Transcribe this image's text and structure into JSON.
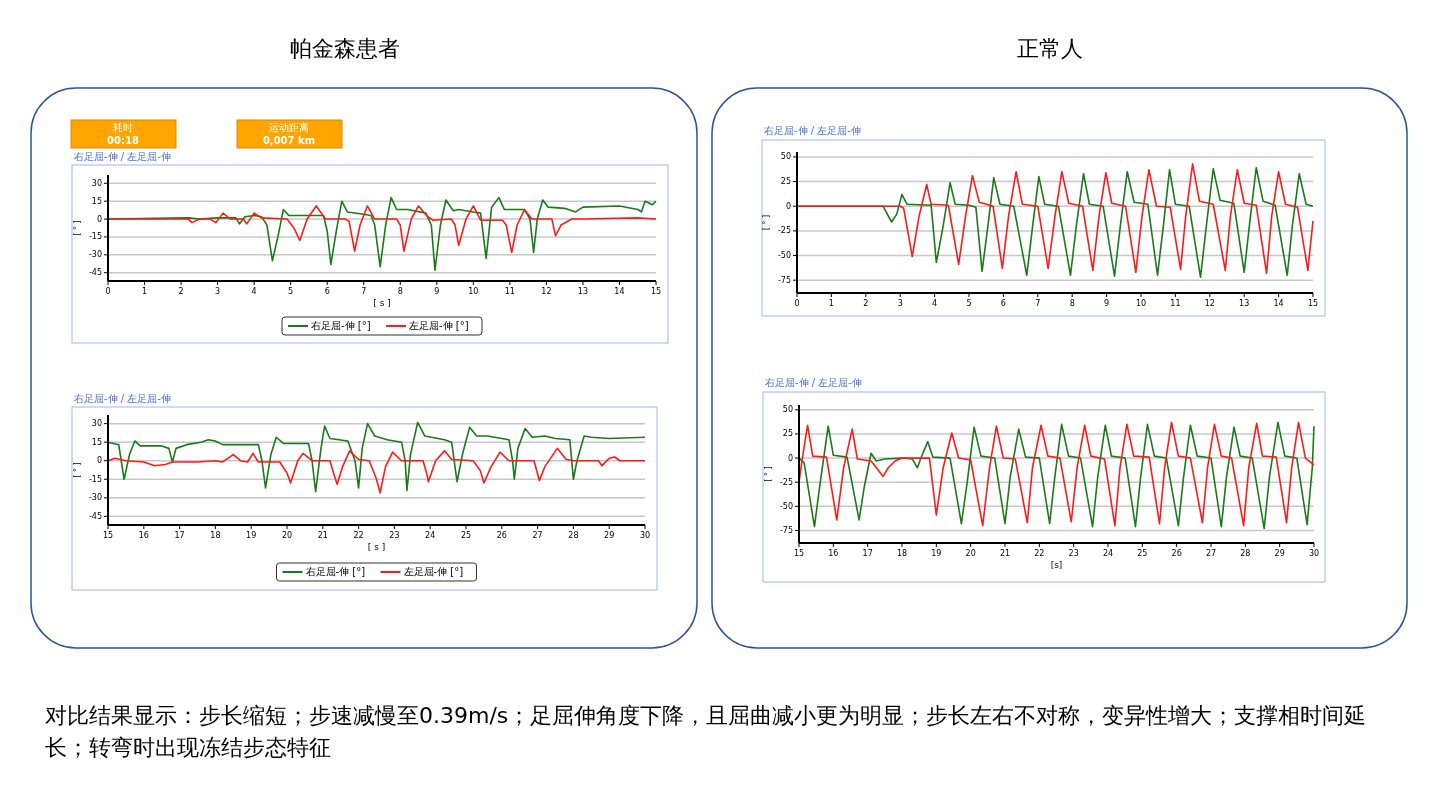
{
  "chart_data": [
    {
      "type": "line",
      "title": "右足屈-伸 / 左足屈-伸",
      "xlabel": "[ s ]",
      "ylabel": "[ ° ]",
      "xlim": [
        0,
        15
      ],
      "xticks": [
        0,
        1,
        2,
        3,
        4,
        5,
        6,
        7,
        8,
        9,
        10,
        11,
        12,
        13,
        14,
        15
      ],
      "ylim": [
        -52,
        37
      ],
      "yticks": [
        30,
        15,
        0,
        -15,
        -30,
        -45
      ],
      "grid": "y",
      "legend": "bottom",
      "annotations": [
        "帕金森患者",
        "耗时",
        "00:18",
        "运动距离",
        "0,007 km",
        "对比结果显示：步长缩短；步速减慢至0.39m/s；足屈伸角度下降，且屈曲减小更为明显；步长左右不对称，变异性增大；支撑相时间延长；转弯时出现冻结步态特征"
      ],
      "series": [
        {
          "name": "右足屈-伸 [°]",
          "color": "#1a7a1a",
          "x": [
            0,
            2.2,
            2.5,
            3,
            3.5,
            3.6,
            3.75,
            4,
            4.2,
            4.35,
            4.5,
            4.65,
            4.8,
            4.95,
            5.5,
            5.9,
            6,
            6.1,
            6.25,
            6.4,
            6.55,
            7,
            7.2,
            7.3,
            7.45,
            7.6,
            7.75,
            7.9,
            8.2,
            8.7,
            8.85,
            8.95,
            9.1,
            9.25,
            9.45,
            9.6,
            10,
            10.2,
            10.35,
            10.5,
            10.7,
            10.85,
            11.4,
            11.55,
            11.65,
            11.75,
            11.9,
            12.05,
            12.5,
            12.8,
            13,
            14,
            14.5,
            14.6,
            14.7,
            14.9,
            15
          ],
          "values": [
            0,
            1,
            0,
            1,
            1,
            -4,
            2,
            3,
            2,
            -5,
            -35,
            -15,
            8,
            3,
            3,
            3,
            -10,
            -38,
            -10,
            15,
            6,
            4,
            3,
            -5,
            -40,
            -5,
            18,
            8,
            8,
            5,
            -5,
            -43,
            -5,
            16,
            7,
            8,
            6,
            5,
            -33,
            10,
            18,
            8,
            8,
            0,
            -28,
            0,
            16,
            10,
            9,
            6,
            10,
            11,
            8,
            6,
            15,
            12,
            15
          ]
        },
        {
          "name": "左足屈-伸 [°]",
          "color": "#ff1a1a",
          "x": [
            0,
            2.2,
            2.3,
            2.5,
            2.8,
            2.95,
            3.15,
            3.35,
            3.7,
            3.8,
            4,
            4.2,
            4.9,
            5.1,
            5.25,
            5.45,
            5.7,
            5.95,
            6.5,
            6.6,
            6.75,
            6.9,
            7.1,
            7.3,
            7.9,
            8,
            8.1,
            8.3,
            8.5,
            8.75,
            8.9,
            9.4,
            9.5,
            9.6,
            9.8,
            10,
            10.2,
            10.8,
            10.9,
            11.05,
            11.2,
            11.4,
            11.6,
            12.15,
            12.25,
            12.4,
            12.7,
            13,
            14.5,
            15
          ],
          "values": [
            0,
            0,
            -3,
            0,
            0,
            -3,
            5,
            0,
            0,
            -4,
            5,
            1,
            0,
            -8,
            -18,
            0,
            11,
            0,
            0,
            -2,
            -27,
            -5,
            11,
            0,
            0,
            -5,
            -27,
            0,
            11,
            2,
            -1,
            0,
            -5,
            -22,
            0,
            11,
            -1,
            -1,
            -5,
            -28,
            -5,
            8,
            0,
            0,
            -14,
            -5,
            0,
            0,
            1,
            0
          ]
        }
      ]
    },
    {
      "type": "line",
      "title": "右足屈-伸 / 左足屈-伸",
      "xlabel": "[ s ]",
      "ylabel": "[ ° ]",
      "xlim": [
        15,
        30
      ],
      "xticks": [
        15,
        16,
        17,
        18,
        19,
        20,
        21,
        22,
        23,
        24,
        25,
        26,
        27,
        28,
        29,
        30
      ],
      "ylim": [
        -52,
        37
      ],
      "yticks": [
        30,
        15,
        0,
        -15,
        -30,
        -45
      ],
      "grid": "y",
      "legend": "bottom",
      "series": [
        {
          "name": "右足屈-伸 [°]",
          "color": "#1a7a1a",
          "x": [
            15,
            15.3,
            15.45,
            15.6,
            15.75,
            15.9,
            16.5,
            16.7,
            16.8,
            16.9,
            17.2,
            17.6,
            17.8,
            18,
            18.2,
            18.6,
            19.2,
            19.3,
            19.4,
            19.55,
            19.7,
            19.9,
            20.6,
            20.7,
            20.8,
            20.95,
            21.05,
            21.2,
            21.7,
            21.9,
            22,
            22.1,
            22.25,
            22.45,
            22.8,
            23.2,
            23.3,
            23.35,
            23.45,
            23.65,
            23.85,
            24.4,
            24.6,
            24.75,
            24.9,
            25.1,
            25.3,
            25.6,
            26.2,
            26.3,
            26.35,
            26.45,
            26.65,
            26.85,
            27.2,
            27.5,
            27.9,
            28,
            28.1,
            28.3,
            28.5,
            29,
            30
          ],
          "values": [
            15,
            13,
            -15,
            5,
            16,
            12,
            12,
            10,
            -1,
            10,
            13,
            15,
            17,
            16,
            13,
            13,
            13,
            0,
            -22,
            5,
            19,
            14,
            14,
            0,
            -25,
            10,
            28,
            18,
            16,
            0,
            -22,
            10,
            30,
            20,
            17,
            15,
            0,
            -24,
            5,
            31,
            20,
            17,
            15,
            -17,
            5,
            27,
            20,
            20,
            17,
            0,
            -15,
            10,
            26,
            19,
            20,
            18,
            17,
            -15,
            0,
            20,
            19,
            18,
            19
          ]
        },
        {
          "name": "左足屈-伸 [°]",
          "color": "#ff1a1a",
          "x": [
            15,
            15.2,
            15.5,
            16,
            16.3,
            16.6,
            16.8,
            17.5,
            18,
            18.2,
            18.5,
            18.7,
            18.9,
            19.05,
            19.2,
            19.8,
            20,
            20.1,
            20.3,
            20.45,
            20.7,
            21.2,
            21.3,
            21.4,
            21.55,
            21.75,
            22,
            22.3,
            22.5,
            22.6,
            22.75,
            22.95,
            23.2,
            23.8,
            23.9,
            23.95,
            24.15,
            24.4,
            24.6,
            25.2,
            25.4,
            25.5,
            25.7,
            25.95,
            26.2,
            26.9,
            27.05,
            27.2,
            27.55,
            27.8,
            28,
            28.7,
            28.8,
            29,
            29.15,
            29.3,
            30
          ],
          "values": [
            0,
            2,
            0,
            -1,
            -4,
            -3,
            -1,
            -1,
            0,
            -1,
            5,
            0,
            -1,
            6,
            -1,
            -1,
            -10,
            -18,
            0,
            6,
            0,
            0,
            -10,
            -19,
            -5,
            8,
            1,
            0,
            -15,
            -26,
            -5,
            7,
            0,
            0,
            -10,
            -17,
            0,
            8,
            1,
            0,
            -8,
            -18,
            -5,
            7,
            0,
            0,
            -16,
            -5,
            10,
            1,
            0,
            0,
            -4,
            2,
            3,
            0,
            0
          ]
        }
      ]
    },
    {
      "type": "line",
      "title": "右足屈-伸 / 左足屈-伸",
      "ylabel": "[ ° ]",
      "xlim": [
        0,
        15
      ],
      "xticks": [
        0,
        1,
        2,
        3,
        4,
        5,
        6,
        7,
        8,
        9,
        10,
        11,
        12,
        13,
        14,
        15
      ],
      "ylim": [
        -88,
        55
      ],
      "yticks": [
        50,
        25,
        0,
        -25,
        -50,
        -75
      ],
      "grid": "y",
      "annotations": [
        "正常人"
      ],
      "series": [
        {
          "color": "#1a7a1a",
          "x": [
            0,
            2.5,
            2.75,
            2.9,
            3.05,
            3.2,
            3.9,
            4.05,
            4.25,
            4.45,
            4.6,
            5,
            5.2,
            5.38,
            5.55,
            5.72,
            5.9,
            6.3,
            6.68,
            6.85,
            7.03,
            7.2,
            7.6,
            7.95,
            8.12,
            8.33,
            8.5,
            8.9,
            9.23,
            9.4,
            9.6,
            9.8,
            10.2,
            10.48,
            10.65,
            10.83,
            11,
            11.4,
            11.73,
            11.9,
            12.1,
            12.3,
            12.7,
            13,
            13.15,
            13.35,
            13.55,
            13.9,
            14.25,
            14.4,
            14.6,
            14.8,
            15
          ],
          "values": [
            0,
            0,
            -16,
            -8,
            12,
            2,
            1,
            -57,
            -20,
            24,
            2,
            1,
            -1,
            -66,
            -20,
            29,
            2,
            0,
            -70,
            -20,
            30,
            2,
            0,
            -70,
            -20,
            33,
            2,
            0,
            -71,
            -20,
            35,
            4,
            2,
            -70,
            -20,
            37,
            2,
            0,
            -72,
            -20,
            38,
            6,
            3,
            -67,
            -20,
            39,
            5,
            1,
            -70,
            -20,
            33,
            2,
            0
          ]
        },
        {
          "color": "#ff1a1a",
          "x": [
            0,
            3,
            3.1,
            3.35,
            3.55,
            3.77,
            3.9,
            4.4,
            4.7,
            4.9,
            5.1,
            5.3,
            5.7,
            5.97,
            6.15,
            6.37,
            6.55,
            7,
            7.3,
            7.5,
            7.7,
            7.9,
            8.3,
            8.6,
            8.78,
            8.98,
            9.15,
            9.55,
            9.85,
            10.03,
            10.23,
            10.45,
            10.85,
            11.15,
            11.3,
            11.5,
            11.7,
            12.1,
            12.45,
            12.6,
            12.8,
            13,
            13.35,
            13.65,
            13.8,
            14,
            14.2,
            14.55,
            14.85,
            15
          ],
          "values": [
            0,
            0,
            -2,
            -51,
            -10,
            22,
            2,
            1,
            -59,
            -10,
            31,
            4,
            0,
            -63,
            -10,
            35,
            2,
            0,
            -63,
            -10,
            35,
            3,
            0,
            -65,
            -10,
            34,
            3,
            0,
            -67,
            -10,
            37,
            0,
            -1,
            -64,
            -10,
            43,
            5,
            2,
            -65,
            -10,
            37,
            3,
            1,
            -68,
            -10,
            35,
            2,
            -1,
            -65,
            -15
          ]
        }
      ]
    },
    {
      "type": "line",
      "title": "右足屈-伸 / 左足屈-伸",
      "xlabel": "[s]",
      "ylabel": "[ ° ]",
      "xlim": [
        15,
        30
      ],
      "xticks": [
        15,
        16,
        17,
        18,
        19,
        20,
        21,
        22,
        23,
        24,
        25,
        26,
        27,
        28,
        29,
        30
      ],
      "ylim": [
        -88,
        55
      ],
      "yticks": [
        50,
        25,
        0,
        -25,
        -50,
        -75
      ],
      "grid": "y",
      "series": [
        {
          "color": "#1a7a1a",
          "x": [
            15,
            15.15,
            15.45,
            15.6,
            15.85,
            16,
            16.4,
            16.75,
            16.9,
            17.1,
            17.25,
            17.5,
            18,
            18.3,
            18.45,
            18.55,
            18.75,
            18.9,
            19.4,
            19.73,
            19.9,
            20.1,
            20.3,
            20.7,
            21,
            21.15,
            21.4,
            21.6,
            22,
            22.3,
            22.45,
            22.65,
            22.85,
            23.2,
            23.55,
            23.7,
            23.92,
            24.1,
            24.5,
            24.8,
            24.95,
            25.15,
            25.35,
            25.7,
            26.05,
            26.2,
            26.4,
            26.6,
            27,
            27.3,
            27.45,
            27.67,
            27.85,
            28.2,
            28.55,
            28.7,
            28.95,
            29.15,
            29.5,
            29.8,
            29.95,
            30
          ],
          "values": [
            0,
            -5,
            -71,
            -30,
            33,
            3,
            1,
            -64,
            -30,
            5,
            -3,
            -1,
            0,
            -1,
            -10,
            0,
            17,
            1,
            0,
            -68,
            -25,
            32,
            2,
            0,
            -68,
            -20,
            30,
            1,
            0,
            -68,
            -20,
            35,
            2,
            0,
            -71,
            -20,
            34,
            2,
            0,
            -71,
            -20,
            35,
            2,
            0,
            -70,
            -20,
            34,
            2,
            0,
            -71,
            -20,
            32,
            2,
            0,
            -73,
            -20,
            37,
            2,
            0,
            -69,
            -10,
            33
          ]
        },
        {
          "color": "#ff1a1a",
          "x": [
            15,
            15.12,
            15.25,
            15.4,
            15.8,
            16.1,
            16.3,
            16.55,
            16.7,
            17.1,
            17.3,
            17.45,
            17.6,
            17.8,
            18,
            18.5,
            18.8,
            19,
            19.2,
            19.45,
            19.65,
            20,
            20.35,
            20.55,
            20.75,
            20.95,
            21.3,
            21.65,
            21.8,
            22.05,
            22.25,
            22.6,
            22.93,
            23.1,
            23.32,
            23.5,
            23.9,
            24.2,
            24.35,
            24.55,
            24.75,
            25.2,
            25.5,
            25.65,
            25.85,
            26.05,
            26.4,
            26.75,
            26.9,
            27.1,
            27.3,
            27.6,
            27.95,
            28.1,
            28.33,
            28.5,
            28.9,
            29.2,
            29.35,
            29.55,
            29.75,
            30
          ],
          "values": [
            -25,
            5,
            34,
            2,
            1,
            -64,
            -10,
            30,
            -1,
            -3,
            -12,
            -19,
            -10,
            -3,
            0,
            0,
            0,
            -59,
            -10,
            26,
            0,
            -2,
            -70,
            -10,
            33,
            0,
            -1,
            -67,
            -10,
            34,
            2,
            0,
            -66,
            -10,
            34,
            2,
            -1,
            -70,
            -10,
            35,
            2,
            1,
            -68,
            -10,
            37,
            2,
            0,
            -67,
            -10,
            35,
            2,
            0,
            -70,
            -10,
            36,
            2,
            1,
            -67,
            -10,
            37,
            0,
            -7
          ]
        }
      ]
    }
  ]
}
